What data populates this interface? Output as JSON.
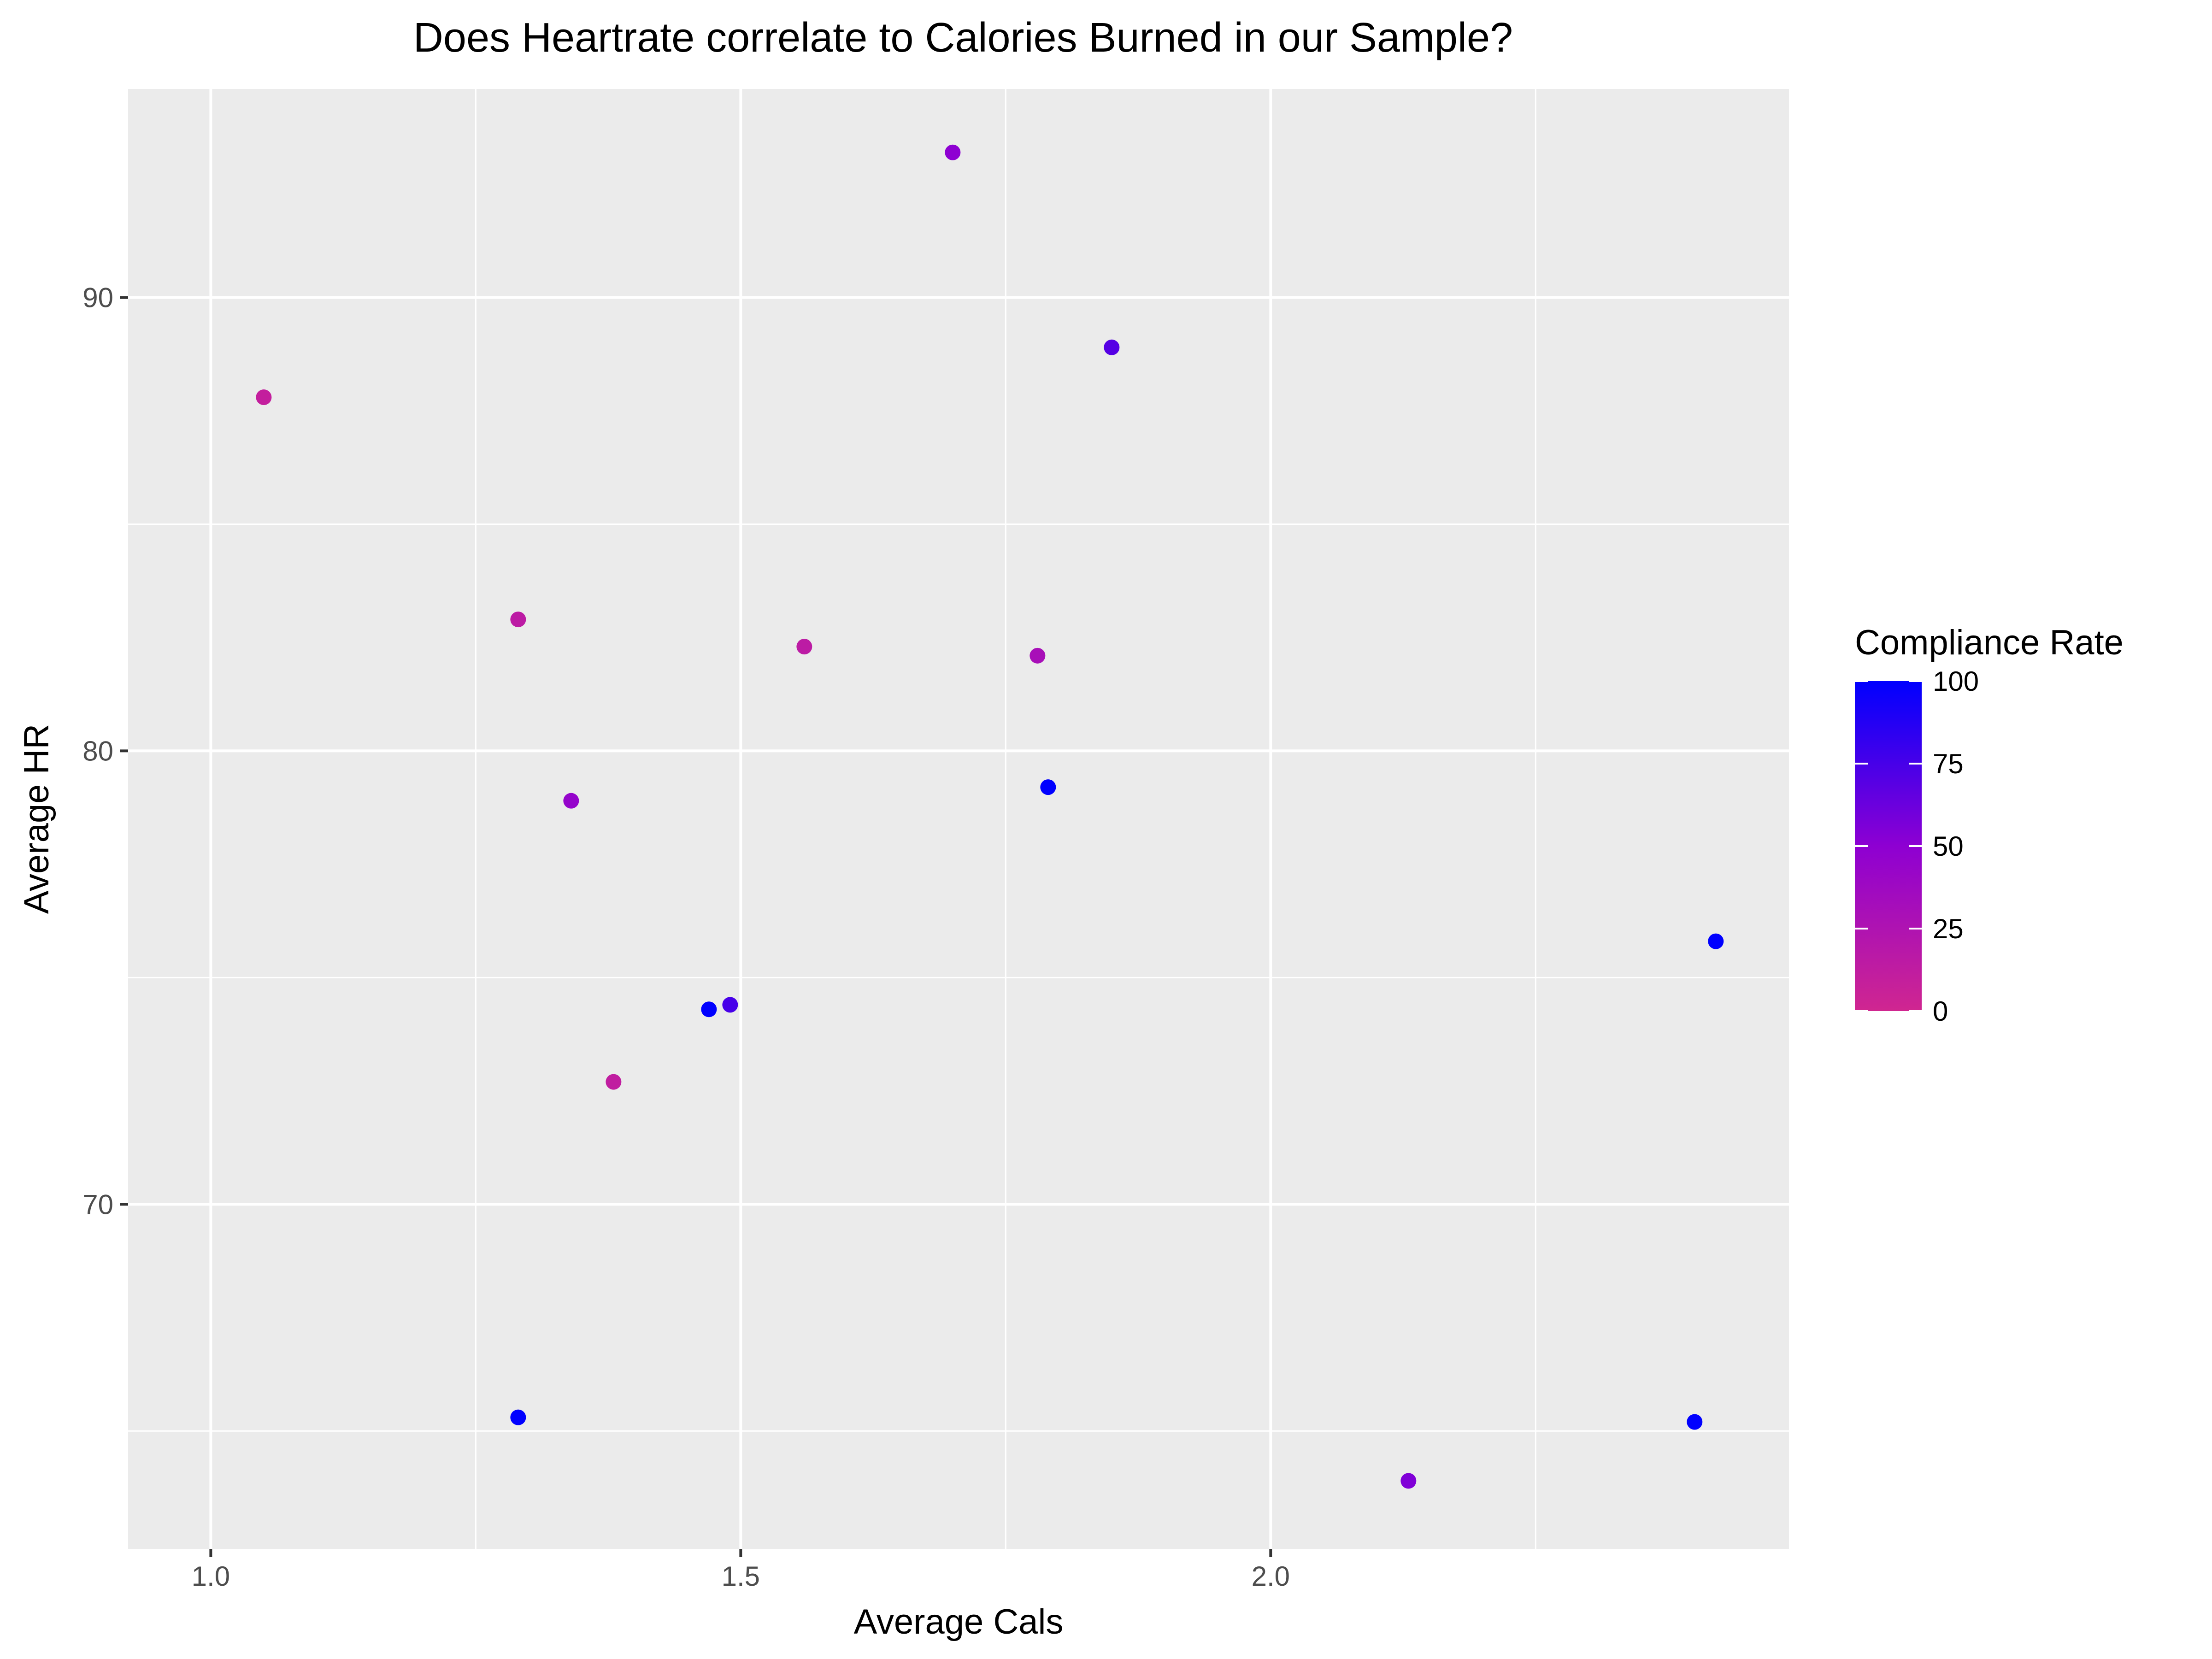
{
  "chart_data": {
    "type": "scatter",
    "title": "Does Heartrate correlate to Calories Burned in our Sample?",
    "xlabel": "Average Cals",
    "ylabel": "Average HR",
    "xlim": [
      0.922,
      2.489
    ],
    "ylim": [
      62.4,
      94.6
    ],
    "x_ticks": [
      1.0,
      1.5,
      2.0
    ],
    "x_tick_labels": [
      "1.0",
      "1.5",
      "2.0"
    ],
    "x_minor_ticks": [
      1.25,
      1.75,
      2.25
    ],
    "y_ticks": [
      70,
      80,
      90
    ],
    "y_tick_labels": [
      "70",
      "80",
      "90"
    ],
    "y_minor_ticks": [
      65,
      75,
      85
    ],
    "grid": true,
    "panel_background": "#ebebeb",
    "legend": {
      "title": "Compliance Rate",
      "position": "right",
      "ticks": [
        0,
        25,
        50,
        75,
        100
      ],
      "tick_labels": [
        "0",
        "25",
        "50",
        "75",
        "100"
      ],
      "color_low": "#d02690",
      "color_mid": "#8e00d2",
      "color_high": "#0000ff",
      "range": [
        0,
        100
      ]
    },
    "points": [
      {
        "x": 1.05,
        "y": 87.8,
        "compliance": 10
      },
      {
        "x": 1.29,
        "y": 82.9,
        "compliance": 15
      },
      {
        "x": 1.34,
        "y": 78.9,
        "compliance": 45
      },
      {
        "x": 1.38,
        "y": 72.7,
        "compliance": 12
      },
      {
        "x": 1.47,
        "y": 74.3,
        "compliance": 100
      },
      {
        "x": 1.49,
        "y": 74.4,
        "compliance": 75
      },
      {
        "x": 1.56,
        "y": 82.3,
        "compliance": 15
      },
      {
        "x": 1.7,
        "y": 93.2,
        "compliance": 50
      },
      {
        "x": 1.78,
        "y": 82.1,
        "compliance": 30
      },
      {
        "x": 1.79,
        "y": 79.2,
        "compliance": 100
      },
      {
        "x": 1.85,
        "y": 88.9,
        "compliance": 70
      },
      {
        "x": 1.29,
        "y": 65.3,
        "compliance": 100
      },
      {
        "x": 2.13,
        "y": 63.9,
        "compliance": 55
      },
      {
        "x": 2.4,
        "y": 65.2,
        "compliance": 100
      },
      {
        "x": 2.42,
        "y": 75.8,
        "compliance": 100
      }
    ]
  }
}
